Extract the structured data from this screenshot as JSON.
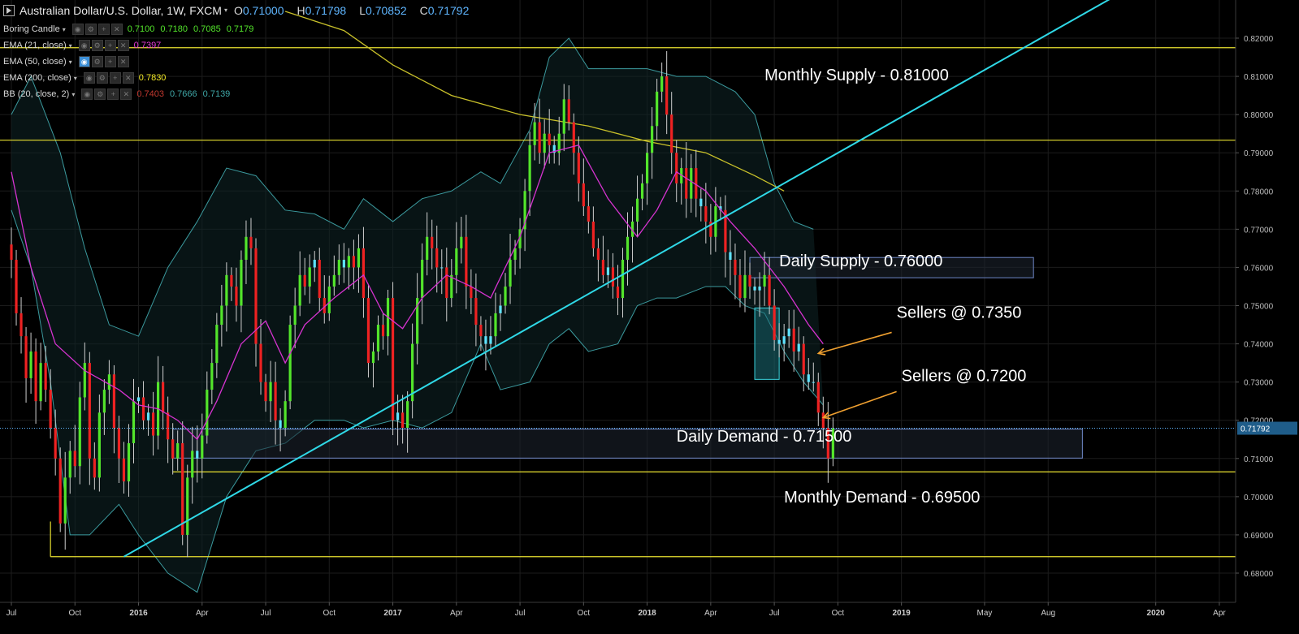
{
  "header": {
    "symbol_title": "Australian Dollar/U.S. Dollar, 1W, FXCM",
    "ohlc": [
      {
        "k": "O",
        "v": "0.71000"
      },
      {
        "k": "H",
        "v": "0.71798"
      },
      {
        "k": "L",
        "v": "0.70852"
      },
      {
        "k": "C",
        "v": "0.71792"
      }
    ]
  },
  "indicators": [
    {
      "label": "Boring Candle",
      "values": [
        "0.7100",
        "0.7180",
        "0.7085",
        "0.7179"
      ],
      "colors": [
        "#53e52b",
        "#53e52b",
        "#53e52b",
        "#53e52b"
      ],
      "active": false
    },
    {
      "label": "EMA (21, close)",
      "values": [
        "0.7397"
      ],
      "colors": [
        "#e63ad8"
      ],
      "active": false
    },
    {
      "label": "EMA (50, close)",
      "values": [],
      "colors": [],
      "active": true
    },
    {
      "label": "EMA (200, close)",
      "values": [
        "0.7830"
      ],
      "colors": [
        "#f2e826"
      ],
      "active": false
    },
    {
      "label": "BB (20, close, 2)",
      "values": [
        "0.7403",
        "0.7666",
        "0.7139"
      ],
      "colors": [
        "#c2382f",
        "#3fa8a8",
        "#3fa8a8"
      ],
      "active": false
    }
  ],
  "chart_data": {
    "type": "candlestick",
    "ylim": [
      0.675,
      0.825
    ],
    "y_ticks": [
      "0.68000",
      "0.69000",
      "0.70000",
      "0.71000",
      "0.72000",
      "0.73000",
      "0.74000",
      "0.75000",
      "0.76000",
      "0.77000",
      "0.78000",
      "0.79000",
      "0.80000",
      "0.81000",
      "0.82000"
    ],
    "x_ticks": [
      "Jul",
      "Oct",
      "2016",
      "Apr",
      "Jul",
      "Oct",
      "2017",
      "Apr",
      "Jul",
      "Oct",
      "2018",
      "Apr",
      "Jul",
      "Oct",
      "2019",
      "May",
      "Aug",
      "2020",
      "Apr"
    ],
    "x_tick_positions_index": [
      0,
      13,
      26,
      39,
      52,
      65,
      78,
      91,
      104,
      117,
      130,
      143,
      156,
      169,
      182,
      199,
      212,
      234,
      247
    ],
    "current_price": "0.71792",
    "candle_colors": {
      "up": "#53e52b",
      "down": "#ee2222",
      "boring": "#5fe3ff"
    },
    "ohlc_weekly_closes": [
      0.762,
      0.748,
      0.742,
      0.731,
      0.738,
      0.725,
      0.735,
      0.728,
      0.718,
      0.71,
      0.693,
      0.705,
      0.712,
      0.708,
      0.726,
      0.735,
      0.71,
      0.705,
      0.722,
      0.728,
      0.732,
      0.718,
      0.71,
      0.704,
      0.714,
      0.725,
      0.726,
      0.72,
      0.722,
      0.716,
      0.73,
      0.722,
      0.715,
      0.71,
      0.714,
      0.69,
      0.705,
      0.712,
      0.71,
      0.716,
      0.728,
      0.735,
      0.745,
      0.75,
      0.758,
      0.755,
      0.75,
      0.762,
      0.768,
      0.765,
      0.74,
      0.73,
      0.725,
      0.73,
      0.72,
      0.718,
      0.725,
      0.745,
      0.75,
      0.758,
      0.755,
      0.76,
      0.762,
      0.752,
      0.748,
      0.755,
      0.758,
      0.762,
      0.76,
      0.763,
      0.76,
      0.765,
      0.752,
      0.735,
      0.738,
      0.745,
      0.742,
      0.752,
      0.72,
      0.722,
      0.718,
      0.725,
      0.74,
      0.752,
      0.762,
      0.768,
      0.765,
      0.76,
      0.76,
      0.752,
      0.758,
      0.765,
      0.768,
      0.755,
      0.752,
      0.745,
      0.742,
      0.74,
      0.742,
      0.748,
      0.75,
      0.755,
      0.762,
      0.765,
      0.77,
      0.78,
      0.792,
      0.798,
      0.79,
      0.795,
      0.792,
      0.79,
      0.795,
      0.804,
      0.798,
      0.79,
      0.782,
      0.776,
      0.772,
      0.765,
      0.762,
      0.758,
      0.76,
      0.755,
      0.752,
      0.762,
      0.768,
      0.772,
      0.778,
      0.782,
      0.79,
      0.797,
      0.806,
      0.81,
      0.8,
      0.79,
      0.782,
      0.786,
      0.778,
      0.786,
      0.778,
      0.776,
      0.772,
      0.768,
      0.776,
      0.775,
      0.764,
      0.762,
      0.758,
      0.752,
      0.758,
      0.755,
      0.754,
      0.755,
      0.758,
      0.75,
      0.741,
      0.74,
      0.742,
      0.744,
      0.738,
      0.74,
      0.732,
      0.73,
      0.73,
      0.722,
      0.718,
      0.71,
      0.7179
    ],
    "ema21": [
      [
        0,
        0.785
      ],
      [
        4,
        0.76
      ],
      [
        9,
        0.74
      ],
      [
        15,
        0.733
      ],
      [
        22,
        0.728
      ],
      [
        26,
        0.724
      ],
      [
        30,
        0.723
      ],
      [
        34,
        0.72
      ],
      [
        38,
        0.715
      ],
      [
        42,
        0.725
      ],
      [
        47,
        0.74
      ],
      [
        52,
        0.746
      ],
      [
        56,
        0.735
      ],
      [
        60,
        0.745
      ],
      [
        66,
        0.752
      ],
      [
        72,
        0.758
      ],
      [
        76,
        0.748
      ],
      [
        80,
        0.744
      ],
      [
        84,
        0.752
      ],
      [
        89,
        0.758
      ],
      [
        94,
        0.755
      ],
      [
        98,
        0.752
      ],
      [
        104,
        0.768
      ],
      [
        110,
        0.79
      ],
      [
        116,
        0.792
      ],
      [
        122,
        0.778
      ],
      [
        128,
        0.768
      ],
      [
        132,
        0.775
      ],
      [
        136,
        0.785
      ],
      [
        142,
        0.78
      ],
      [
        147,
        0.772
      ],
      [
        152,
        0.765
      ],
      [
        158,
        0.755
      ],
      [
        163,
        0.745
      ],
      [
        166,
        0.74
      ]
    ],
    "ema200": [
      [
        56,
        0.827
      ],
      [
        68,
        0.822
      ],
      [
        78,
        0.813
      ],
      [
        90,
        0.805
      ],
      [
        104,
        0.8
      ],
      [
        118,
        0.797
      ],
      [
        130,
        0.793
      ],
      [
        142,
        0.79
      ],
      [
        152,
        0.784
      ],
      [
        158,
        0.78
      ]
    ],
    "bb_upper": [
      [
        0,
        0.8
      ],
      [
        4,
        0.81
      ],
      [
        10,
        0.79
      ],
      [
        15,
        0.765
      ],
      [
        20,
        0.745
      ],
      [
        26,
        0.742
      ],
      [
        32,
        0.76
      ],
      [
        38,
        0.772
      ],
      [
        44,
        0.786
      ],
      [
        50,
        0.784
      ],
      [
        56,
        0.775
      ],
      [
        62,
        0.774
      ],
      [
        68,
        0.77
      ],
      [
        72,
        0.778
      ],
      [
        78,
        0.772
      ],
      [
        84,
        0.778
      ],
      [
        90,
        0.78
      ],
      [
        96,
        0.785
      ],
      [
        100,
        0.782
      ],
      [
        106,
        0.796
      ],
      [
        110,
        0.815
      ],
      [
        114,
        0.82
      ],
      [
        118,
        0.812
      ],
      [
        124,
        0.812
      ],
      [
        130,
        0.812
      ],
      [
        136,
        0.81
      ],
      [
        142,
        0.81
      ],
      [
        148,
        0.806
      ],
      [
        152,
        0.8
      ],
      [
        156,
        0.782
      ],
      [
        160,
        0.772
      ],
      [
        164,
        0.77
      ]
    ],
    "bb_lower": [
      [
        0,
        0.775
      ],
      [
        4,
        0.76
      ],
      [
        8,
        0.73
      ],
      [
        12,
        0.69
      ],
      [
        16,
        0.69
      ],
      [
        22,
        0.698
      ],
      [
        26,
        0.69
      ],
      [
        32,
        0.68
      ],
      [
        38,
        0.675
      ],
      [
        44,
        0.7
      ],
      [
        50,
        0.712
      ],
      [
        56,
        0.714
      ],
      [
        62,
        0.72
      ],
      [
        68,
        0.72
      ],
      [
        72,
        0.718
      ],
      [
        78,
        0.72
      ],
      [
        84,
        0.718
      ],
      [
        90,
        0.722
      ],
      [
        96,
        0.74
      ],
      [
        100,
        0.728
      ],
      [
        106,
        0.73
      ],
      [
        110,
        0.74
      ],
      [
        114,
        0.744
      ],
      [
        118,
        0.738
      ],
      [
        124,
        0.74
      ],
      [
        128,
        0.75
      ],
      [
        132,
        0.752
      ],
      [
        136,
        0.752
      ],
      [
        142,
        0.755
      ],
      [
        146,
        0.755
      ],
      [
        150,
        0.75
      ],
      [
        154,
        0.748
      ],
      [
        158,
        0.738
      ],
      [
        162,
        0.73
      ],
      [
        166,
        0.724
      ]
    ],
    "levels": [
      {
        "name": "monthly-supply-upper",
        "price": 0.8175
      },
      {
        "name": "monthly-supply-lower",
        "price": 0.7933
      },
      {
        "name": "monthly-demand-upper",
        "price": 0.7065
      },
      {
        "name": "monthly-demand-lower",
        "price": 0.6843
      }
    ],
    "trendline": {
      "from": [
        23,
        0.6843
      ],
      "to": [
        225,
        0.8305
      ]
    },
    "zones": [
      {
        "name": "daily-supply-zone",
        "x_from": 151,
        "x_to": 209,
        "price_top": 0.7626,
        "price_bottom": 0.7573
      },
      {
        "name": "daily-demand-zone",
        "x_from": 33,
        "x_to": 219,
        "price_top": 0.7177,
        "price_bottom": 0.7101
      },
      {
        "name": "sellers-highlight-box",
        "x_from": 152,
        "x_to": 157,
        "price_top": 0.7494,
        "price_bottom": 0.7307
      }
    ],
    "annotations": [
      {
        "text": "Monthly Supply - 0.81000",
        "x_index": 154,
        "price": 0.809
      },
      {
        "text": "Daily Supply - 0.76000",
        "x_index": 157,
        "price": 0.7603
      },
      {
        "text": "Sellers @ 0.7350",
        "x_index": 181,
        "price": 0.7468
      },
      {
        "text": "Sellers @ 0.7200",
        "x_index": 182,
        "price": 0.7302
      },
      {
        "text": "Daily Demand - 0.71500",
        "x_index": 136,
        "price": 0.7144
      },
      {
        "text": "Monthly Demand - 0.69500",
        "x_index": 158,
        "price": 0.6985
      }
    ],
    "arrows": [
      {
        "from": [
          180,
          0.743
        ],
        "to": [
          165,
          0.7375
        ]
      },
      {
        "from": [
          181,
          0.7275
        ],
        "to": [
          166,
          0.7207
        ]
      }
    ]
  }
}
